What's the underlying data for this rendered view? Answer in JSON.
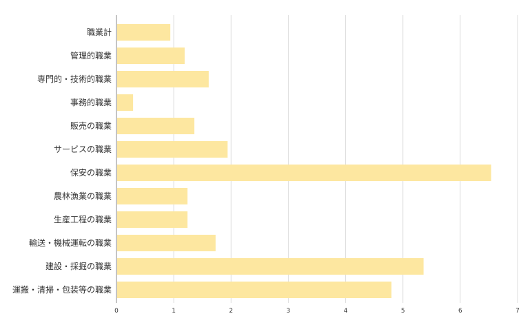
{
  "chart_data": {
    "type": "bar",
    "orientation": "horizontal",
    "categories": [
      "職業計",
      "管理的職業",
      "専門的・技術的職業",
      "事務的職業",
      "販売の職業",
      "サービスの職業",
      "保安の職業",
      "農林漁業の職業",
      "生産工程の職業",
      "輸送・機械運転の職業",
      "建設・採掘の職業",
      "運搬・清掃・包装等の職業"
    ],
    "values": [
      0.94,
      1.19,
      1.61,
      0.29,
      1.36,
      1.94,
      6.54,
      1.24,
      1.24,
      1.73,
      5.36,
      4.8
    ],
    "xlim": [
      0,
      7
    ],
    "x_ticks": [
      "0",
      "1",
      "2",
      "3",
      "4",
      "5",
      "6",
      "7"
    ],
    "grid": true,
    "bar_color": "#fde7a0"
  }
}
